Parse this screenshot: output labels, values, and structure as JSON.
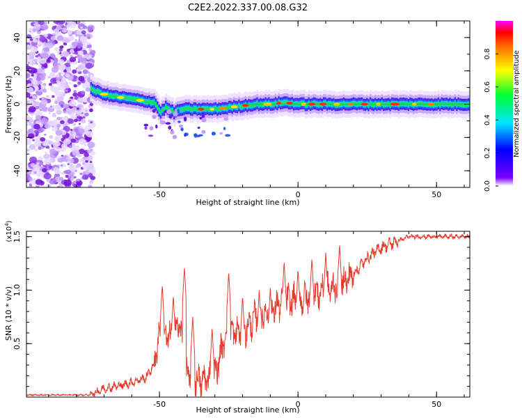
{
  "figure": {
    "title": "C2E2.2022.337.00.08.G32"
  },
  "chart_data": [
    {
      "type": "heatmap",
      "xlabel": "Height of straight line (km)",
      "ylabel": "Frequency (Hz)",
      "xlim": [
        -98,
        62
      ],
      "ylim": [
        -50,
        50
      ],
      "xticks": [
        -50,
        0,
        50
      ],
      "yticks": [
        40,
        20,
        0,
        -20,
        -40
      ],
      "colorbar": {
        "label": "Normalized spectral amplitude",
        "range": [
          0,
          1
        ],
        "ticks": [
          0.0,
          0.2,
          0.4,
          0.6,
          0.8
        ]
      },
      "ridge": {
        "x": [
          -75,
          -72,
          -68,
          -64,
          -60,
          -56,
          -52,
          -50,
          -48,
          -45,
          -42,
          -38,
          -35,
          -30,
          -25,
          -20,
          -15,
          -10,
          -5,
          0,
          5,
          10,
          20,
          30,
          40,
          50,
          62
        ],
        "y": [
          9,
          7,
          5,
          4,
          3,
          2,
          1,
          -5,
          -2,
          -5,
          -3,
          -3,
          -3,
          -3,
          -2,
          -1,
          0,
          0,
          1,
          0,
          0,
          0,
          0,
          0,
          0,
          0,
          0
        ]
      },
      "noise_region_x": [
        -98,
        -74
      ]
    },
    {
      "type": "line",
      "xlabel": "Height of straight line (km)",
      "ylabel": "SNR (10 * v/v)",
      "yscale_note": "(x10^4)",
      "yscale_base": "(x10",
      "yscale_exp": "4",
      "xlim": [
        -98,
        62
      ],
      "ylim": [
        0,
        1.55
      ],
      "xticks": [
        -50,
        0,
        50
      ],
      "yticks": [
        0.5,
        1.0,
        1.5
      ],
      "color": "#e8392d",
      "envelope_x": [
        -98,
        -75,
        -70,
        -62,
        -55,
        -52,
        -50,
        -46,
        -43,
        -40,
        -35,
        -30,
        -26,
        -20,
        -15,
        -10,
        -5,
        0,
        5,
        10,
        15,
        20,
        25,
        30,
        35,
        40,
        50,
        62
      ],
      "envelope_y": [
        0.02,
        0.02,
        0.08,
        0.12,
        0.18,
        0.3,
        0.6,
        0.55,
        0.7,
        0.2,
        0.15,
        0.2,
        0.6,
        0.6,
        0.75,
        0.8,
        0.9,
        0.9,
        0.95,
        1.0,
        1.05,
        1.15,
        1.3,
        1.4,
        1.45,
        1.5,
        1.5,
        1.5
      ],
      "peaks_x": [
        -49,
        -45,
        -41,
        -38,
        -31,
        -25,
        -20,
        -14,
        -10,
        -5,
        0,
        5,
        10,
        15
      ],
      "peaks_y": [
        1.05,
        0.95,
        1.22,
        0.75,
        0.65,
        1.17,
        0.95,
        1.0,
        1.02,
        1.27,
        1.2,
        1.3,
        1.35,
        1.43
      ]
    }
  ]
}
